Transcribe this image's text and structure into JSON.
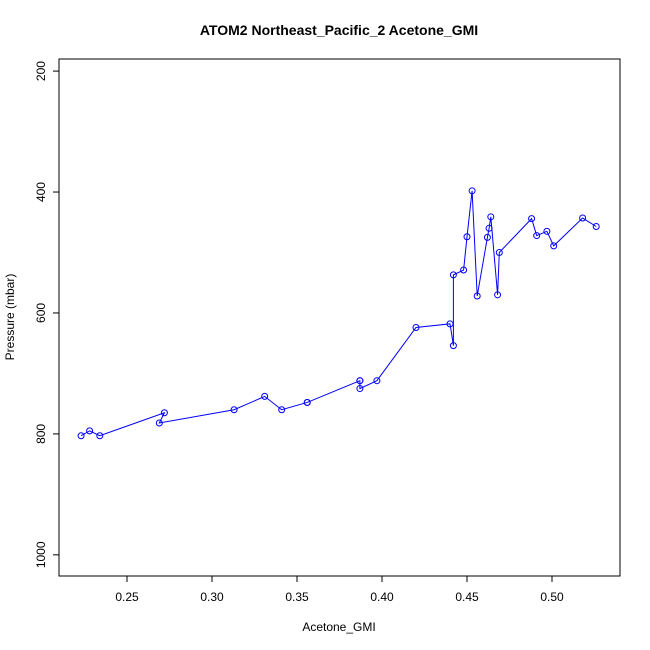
{
  "chart_data": {
    "type": "line",
    "title": "ATOM2 Northeast_Pacific_2 Acetone_GMI",
    "xlabel": "Acetone_GMI",
    "ylabel": "Pressure (mbar)",
    "xlim": [
      0.21,
      0.54
    ],
    "ylim": [
      1035,
      180
    ],
    "y_reversed": true,
    "x_ticks": [
      0.25,
      0.3,
      0.35,
      0.4,
      0.45,
      0.5
    ],
    "x_tick_labels": [
      "0.25",
      "0.30",
      "0.35",
      "0.40",
      "0.45",
      "0.50"
    ],
    "y_ticks": [
      200,
      400,
      600,
      800,
      1000
    ],
    "y_tick_labels": [
      "200",
      "400",
      "600",
      "800",
      "1000"
    ],
    "grid": false,
    "color": "#0000ff",
    "series": [
      {
        "x": [
          0.223,
          0.228,
          0.234,
          0.272,
          0.269,
          0.313,
          0.331,
          0.341,
          0.356,
          0.356,
          0.387,
          0.387,
          0.387,
          0.397,
          0.42,
          0.44,
          0.442,
          0.442,
          0.448,
          0.45,
          0.453,
          0.456,
          0.462,
          0.463,
          0.464,
          0.468,
          0.469,
          0.488,
          0.491,
          0.497,
          0.501,
          0.518,
          0.526
        ],
        "y": [
          803,
          795,
          803,
          765,
          782,
          760,
          738,
          760,
          748,
          748,
          712,
          712,
          725,
          712,
          624,
          618,
          654,
          537,
          529,
          474,
          398,
          572,
          475,
          460,
          441,
          570,
          500,
          444,
          472,
          465,
          489,
          443,
          457
        ]
      }
    ]
  }
}
